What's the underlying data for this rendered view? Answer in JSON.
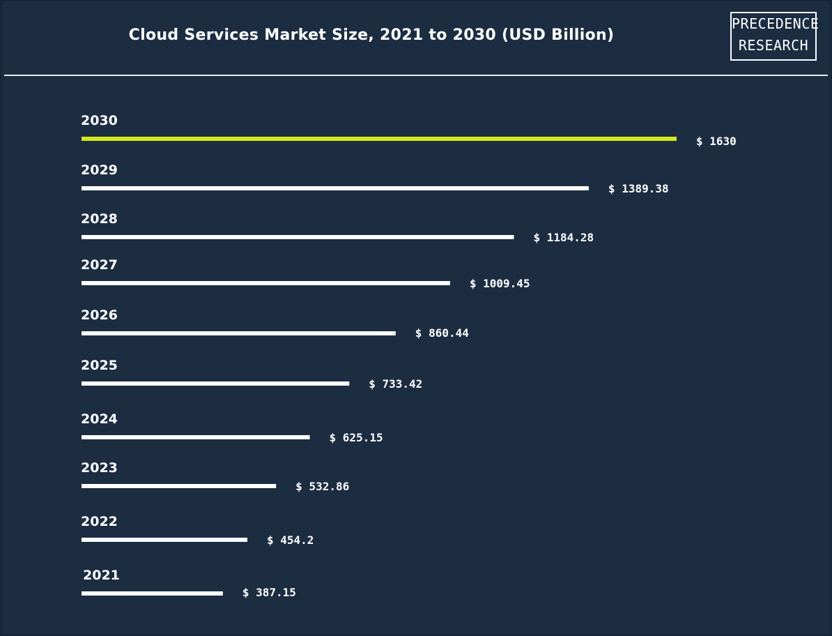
{
  "header": {
    "title": "Cloud Services Market Size, 2021 to 2030 (USD Billion)",
    "logo_line1": "PRECEDENCE",
    "logo_line2": "RESEARCH"
  },
  "colors": {
    "background": "#1c2d42",
    "bar": "#ffffff",
    "highlight_bar": "#d4e81b"
  },
  "chart_data": {
    "type": "bar",
    "orientation": "horizontal",
    "title": "Cloud Services Market Size, 2021 to 2030 (USD Billion)",
    "categories": [
      "2030",
      "2029",
      "2028",
      "2027",
      "2026",
      "2025",
      "2024",
      "2023",
      "2022",
      "2021"
    ],
    "values": [
      1630,
      1389.38,
      1184.28,
      1009.45,
      860.44,
      733.42,
      625.15,
      532.86,
      454.2,
      387.15
    ],
    "value_labels": [
      "$ 1630",
      "$ 1389.38",
      "$ 1184.28",
      "$ 1009.45",
      "$ 860.44",
      "$ 733.42",
      "$ 625.15",
      "$ 532.86",
      "$ 454.2",
      "$ 387.15"
    ],
    "highlight_category": "2030",
    "grid": false
  }
}
